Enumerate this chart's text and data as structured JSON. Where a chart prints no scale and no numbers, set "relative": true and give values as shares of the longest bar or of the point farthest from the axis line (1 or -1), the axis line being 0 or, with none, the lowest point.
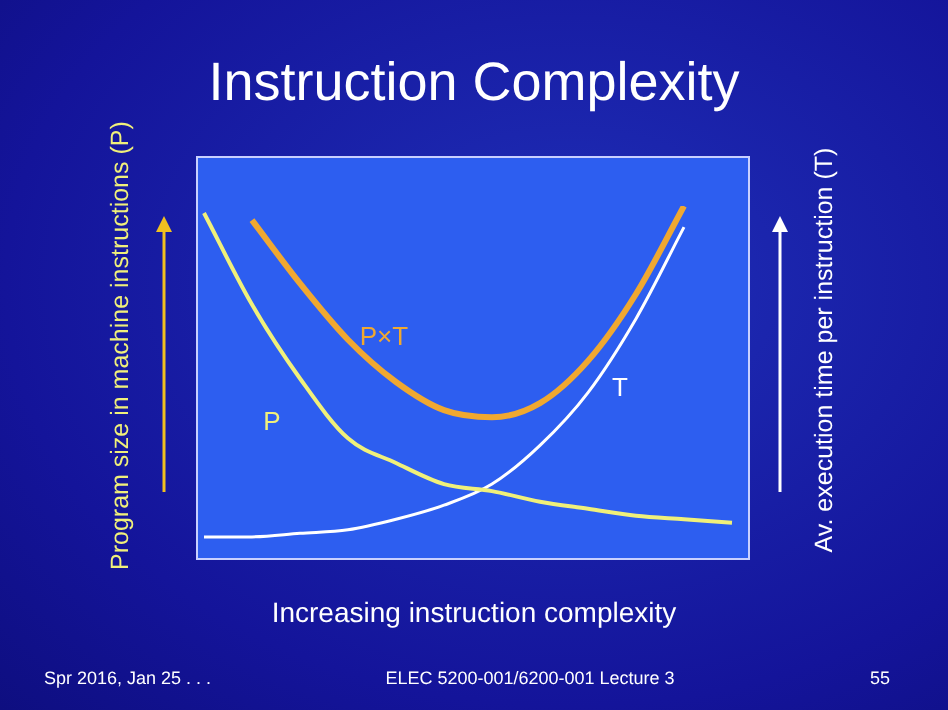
{
  "chart_data": {
    "type": "line",
    "title": "Instruction Complexity",
    "xlabel": "Increasing instruction complexity",
    "ylabel": "Program size in machine instructions (P)",
    "y2label": "Av. execution time per instruction (T)",
    "relative": true,
    "legend": false,
    "marker": "none",
    "categories": [
      null,
      null,
      null,
      null,
      null,
      null,
      null,
      null,
      null,
      null,
      null,
      null
    ],
    "series": [
      {
        "name": "P",
        "color": "#f0f07a",
        "values": [
          0.98,
          0.72,
          0.51,
          0.34,
          0.27,
          0.21,
          0.19,
          0.16,
          0.14,
          0.12,
          0.11,
          0.1
        ]
      },
      {
        "name": "T",
        "color": "#ffffff",
        "values": [
          0.06,
          0.06,
          0.07,
          0.08,
          0.11,
          0.15,
          0.21,
          0.32,
          0.47,
          0.68,
          0.94,
          null
        ]
      },
      {
        "name": "P×T",
        "color": "#f0a830",
        "values": [
          null,
          0.96,
          0.78,
          0.62,
          0.5,
          0.42,
          0.4,
          0.44,
          0.56,
          0.75,
          1,
          null
        ]
      }
    ],
    "annotations": [
      "Spr 2016, Jan 25 . . .",
      "ELEC 5200-001/6200-001 Lecture 3",
      "55"
    ]
  }
}
